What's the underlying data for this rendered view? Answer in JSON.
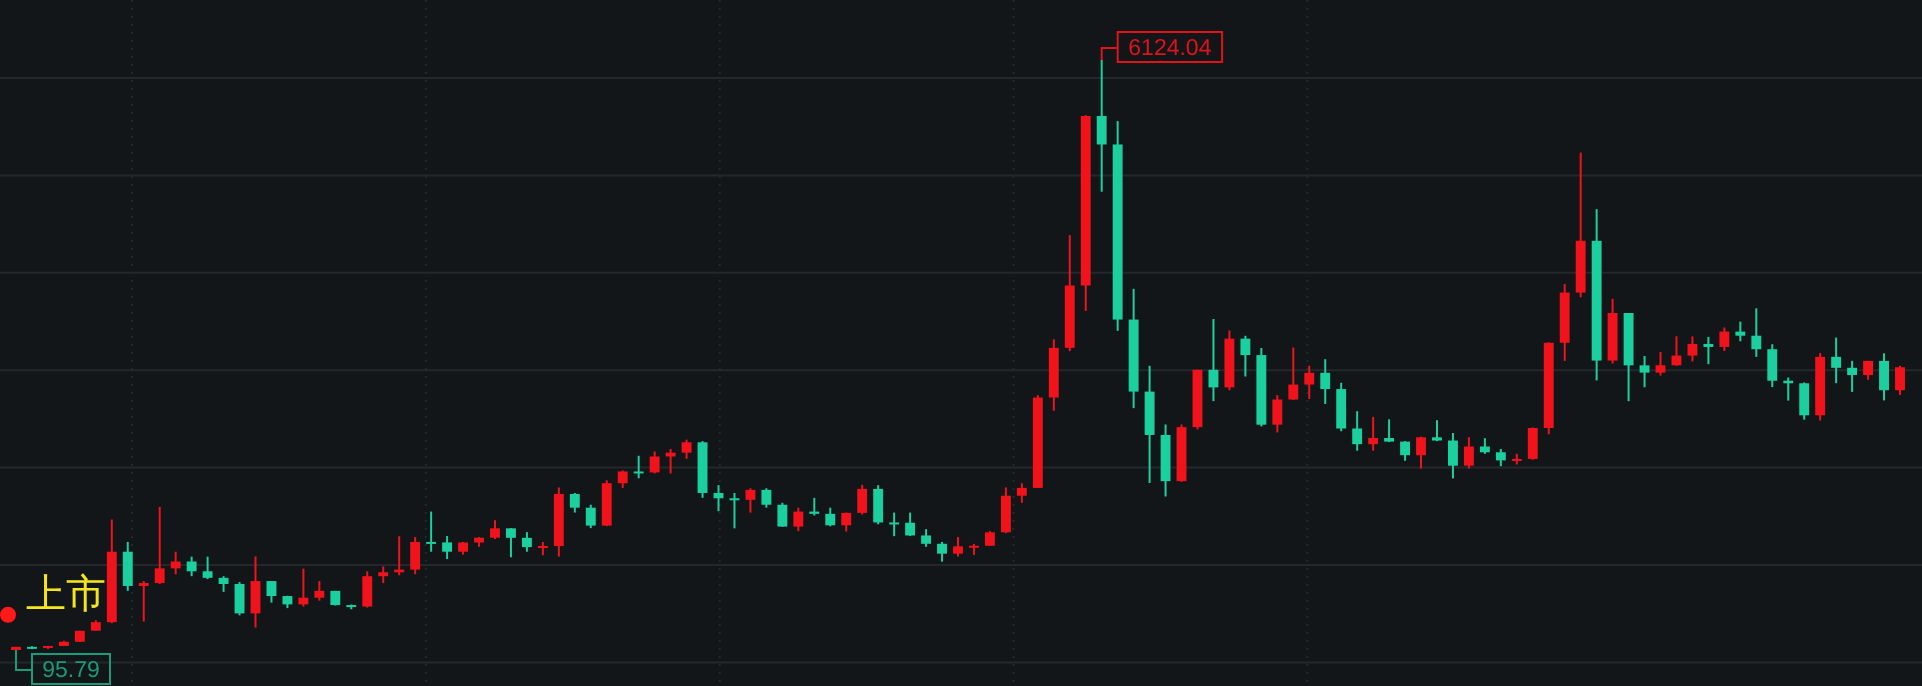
{
  "chart_data": {
    "type": "candlestick",
    "grid": true,
    "annotations": [
      "上市",
      "6124.04",
      "95.79"
    ],
    "categories": [
      null,
      null,
      null,
      null,
      null,
      null,
      null,
      null,
      null,
      null,
      null,
      null,
      null,
      null,
      null,
      null,
      null,
      null,
      null,
      null,
      null,
      null,
      null,
      null,
      null,
      null,
      null,
      null,
      null,
      null,
      null,
      null,
      null,
      null,
      null,
      null,
      null,
      null,
      null,
      null,
      null,
      null,
      null,
      null,
      null,
      null,
      null,
      null,
      null,
      null,
      null,
      null,
      null,
      null,
      null,
      null,
      null,
      null,
      null,
      null,
      null,
      null,
      null,
      null,
      null,
      null,
      null,
      null,
      null,
      null,
      null,
      null,
      null,
      null,
      null,
      null,
      null,
      null,
      null,
      null,
      null,
      null,
      null,
      null,
      null,
      null,
      null,
      null,
      null,
      null,
      null,
      null,
      null,
      null,
      null,
      null,
      null,
      null,
      null,
      null,
      null,
      null,
      null,
      null,
      null,
      null,
      null,
      null,
      null,
      null,
      null,
      null,
      null,
      null,
      null,
      null,
      null,
      null,
      null
    ],
    "ohlc": [
      [
        96,
        128,
        95.79,
        128
      ],
      [
        128,
        135,
        105,
        120
      ],
      [
        120,
        138,
        105,
        137
      ],
      [
        137,
        190,
        136,
        180
      ],
      [
        180,
        293,
        178,
        292
      ],
      [
        293,
        400,
        292,
        380
      ],
      [
        380,
        1429,
        370,
        1100
      ],
      [
        1100,
        1200,
        700,
        750
      ],
      [
        750,
        800,
        386,
        780
      ],
      [
        780,
        1558,
        770,
        930
      ],
      [
        930,
        1100,
        870,
        1000
      ],
      [
        1000,
        1050,
        850,
        900
      ],
      [
        900,
        1050,
        820,
        833
      ],
      [
        833,
        850,
        690,
        770
      ],
      [
        770,
        790,
        450,
        470
      ],
      [
        470,
        1052,
        325,
        800
      ],
      [
        800,
        800,
        580,
        647
      ],
      [
        647,
        650,
        524,
        562
      ],
      [
        562,
        927,
        540,
        630
      ],
      [
        630,
        800,
        600,
        700
      ],
      [
        700,
        700,
        550,
        555
      ],
      [
        555,
        560,
        512,
        540
      ],
      [
        540,
        900,
        530,
        850
      ],
      [
        850,
        950,
        780,
        890
      ],
      [
        890,
        1258,
        860,
        917
      ],
      [
        917,
        1250,
        870,
        1200
      ],
      [
        1200,
        1510,
        1100,
        1195
      ],
      [
        1195,
        1260,
        1025,
        1100
      ],
      [
        1100,
        1200,
        1070,
        1194
      ],
      [
        1194,
        1250,
        1150,
        1243
      ],
      [
        1243,
        1422,
        1230,
        1339
      ],
      [
        1339,
        1340,
        1043,
        1242
      ],
      [
        1242,
        1300,
        1100,
        1147
      ],
      [
        1147,
        1200,
        1064,
        1158
      ],
      [
        1158,
        1756,
        1050,
        1690
      ],
      [
        1690,
        1700,
        1500,
        1550
      ],
      [
        1550,
        1580,
        1341,
        1367
      ],
      [
        1367,
        1830,
        1361,
        1800
      ],
      [
        1800,
        1930,
        1750,
        1920
      ],
      [
        1920,
        2080,
        1850,
        1910
      ],
      [
        1910,
        2125,
        1900,
        2073
      ],
      [
        2073,
        2150,
        1900,
        2112
      ],
      [
        2112,
        2245,
        2050,
        2218
      ],
      [
        2218,
        2230,
        1650,
        1700
      ],
      [
        1700,
        1780,
        1514,
        1646
      ],
      [
        1646,
        1700,
        1339,
        1630
      ],
      [
        1630,
        1748,
        1500,
        1732
      ],
      [
        1732,
        1748,
        1550,
        1580
      ],
      [
        1580,
        1600,
        1355,
        1357
      ],
      [
        1357,
        1550,
        1311,
        1510
      ],
      [
        1510,
        1650,
        1470,
        1487
      ],
      [
        1487,
        1550,
        1360,
        1370
      ],
      [
        1370,
        1500,
        1307,
        1497
      ],
      [
        1497,
        1783,
        1480,
        1742
      ],
      [
        1742,
        1780,
        1380,
        1399
      ],
      [
        1399,
        1500,
        1259,
        1396
      ],
      [
        1396,
        1500,
        1260,
        1266
      ],
      [
        1266,
        1330,
        1150,
        1181
      ],
      [
        1181,
        1200,
        998,
        1080
      ],
      [
        1080,
        1250,
        1050,
        1155
      ],
      [
        1155,
        1180,
        1067,
        1161
      ],
      [
        1161,
        1310,
        1160,
        1298
      ],
      [
        1298,
        1757,
        1290,
        1672
      ],
      [
        1672,
        1800,
        1600,
        1752
      ],
      [
        1752,
        2700,
        1750,
        2675
      ],
      [
        2675,
        3270,
        2540,
        3183
      ],
      [
        3183,
        4335,
        3150,
        3820
      ],
      [
        3820,
        5560,
        3560,
        5552
      ],
      [
        5552,
        6124.04,
        4778,
        5261
      ],
      [
        5261,
        5500,
        3357,
        3472
      ],
      [
        3472,
        3786,
        2567,
        2736
      ],
      [
        2736,
        3000,
        1802,
        2293
      ],
      [
        2293,
        2400,
        1664,
        1821
      ],
      [
        1821,
        2400,
        1814,
        2373
      ],
      [
        2373,
        2960,
        2350,
        2959
      ],
      [
        2959,
        3478,
        2639,
        2779
      ],
      [
        2779,
        3361,
        2750,
        3277
      ],
      [
        3277,
        3306,
        2890,
        3109
      ],
      [
        3109,
        3181,
        2380,
        2398
      ],
      [
        2398,
        2700,
        2319,
        2655
      ],
      [
        2655,
        3186,
        2650,
        2808
      ],
      [
        2808,
        3000,
        2661,
        2928
      ],
      [
        2928,
        3067,
        2610,
        2762
      ],
      [
        2762,
        2826,
        2331,
        2359
      ],
      [
        2359,
        2536,
        2132,
        2199
      ],
      [
        2199,
        2478,
        2132,
        2262
      ],
      [
        2262,
        2453,
        2220,
        2225
      ],
      [
        2225,
        2230,
        2029,
        2086
      ],
      [
        2086,
        2276,
        1949,
        2269
      ],
      [
        2269,
        2444,
        2230,
        2236
      ],
      [
        2236,
        2313,
        1849,
        1979
      ],
      [
        1979,
        2270,
        1950,
        2175
      ],
      [
        2175,
        2260,
        2100,
        2116
      ],
      [
        2116,
        2150,
        1974,
        2033
      ],
      [
        2033,
        2100,
        1991,
        2048
      ],
      [
        2048,
        2370,
        2040,
        2364
      ],
      [
        2364,
        3239,
        2300,
        3235
      ],
      [
        3235,
        3835,
        3049,
        3748
      ],
      [
        3748,
        5178,
        3700,
        4277
      ],
      [
        4277,
        4600,
        2850,
        3053
      ],
      [
        3053,
        3684,
        3023,
        3539
      ],
      [
        3539,
        3539,
        2638,
        3004
      ],
      [
        3004,
        3100,
        2780,
        2930
      ],
      [
        2930,
        3140,
        2900,
        3005
      ],
      [
        3005,
        3301,
        3000,
        3104
      ],
      [
        3104,
        3300,
        3044,
        3223
      ],
      [
        3223,
        3295,
        3016,
        3192
      ],
      [
        3192,
        3391,
        3150,
        3349
      ],
      [
        3349,
        3451,
        3250,
        3307
      ],
      [
        3307,
        3587,
        3091,
        3169
      ],
      [
        3169,
        3220,
        2782,
        2847
      ],
      [
        2847,
        2880,
        2644,
        2821
      ],
      [
        2821,
        2830,
        2449,
        2494
      ],
      [
        2494,
        3130,
        2440,
        3091
      ],
      [
        3091,
        3288,
        2822,
        2979
      ],
      [
        2979,
        3050,
        2733,
        2905
      ],
      [
        2905,
        3050,
        2857,
        3050
      ],
      [
        3050,
        3127,
        2646,
        2750
      ],
      [
        2750,
        3000,
        2700,
        2985
      ]
    ],
    "colors": [
      "#f0131b",
      "#1bcf9f",
      "#f0131b",
      "#f0131b",
      "#f0131b",
      "#f0131b",
      "#f0131b",
      "#1bcf9f",
      "#f0131b",
      "#f0131b",
      "#f0131b",
      "#1bcf9f",
      "#1bcf9f",
      "#1bcf9f",
      "#1bcf9f",
      "#f0131b",
      "#1bcf9f",
      "#1bcf9f",
      "#f0131b",
      "#f0131b",
      "#1bcf9f",
      "#1bcf9f",
      "#f0131b",
      "#f0131b",
      "#f0131b",
      "#f0131b",
      "#1bcf9f",
      "#1bcf9f",
      "#f0131b",
      "#f0131b",
      "#f0131b",
      "#1bcf9f",
      "#1bcf9f",
      "#f0131b",
      "#f0131b",
      "#1bcf9f",
      "#1bcf9f",
      "#f0131b",
      "#f0131b",
      "#1bcf9f",
      "#f0131b",
      "#f0131b",
      "#f0131b",
      "#1bcf9f",
      "#1bcf9f",
      "#1bcf9f",
      "#f0131b",
      "#1bcf9f",
      "#1bcf9f",
      "#f0131b",
      "#1bcf9f",
      "#1bcf9f",
      "#f0131b",
      "#f0131b",
      "#1bcf9f",
      "#1bcf9f",
      "#1bcf9f",
      "#1bcf9f",
      "#1bcf9f",
      "#f0131b",
      "#f0131b",
      "#f0131b",
      "#f0131b",
      "#f0131b",
      "#f0131b",
      "#f0131b",
      "#f0131b",
      "#f0131b",
      "#1bcf9f",
      "#1bcf9f",
      "#1bcf9f",
      "#1bcf9f",
      "#1bcf9f",
      "#f0131b",
      "#f0131b",
      "#1bcf9f",
      "#f0131b",
      "#1bcf9f",
      "#1bcf9f",
      "#f0131b",
      "#f0131b",
      "#f0131b",
      "#1bcf9f",
      "#1bcf9f",
      "#1bcf9f",
      "#f0131b",
      "#1bcf9f",
      "#1bcf9f",
      "#f0131b",
      "#1bcf9f",
      "#1bcf9f",
      "#f0131b",
      "#1bcf9f",
      "#1bcf9f",
      "#f0131b",
      "#f0131b",
      "#f0131b",
      "#f0131b",
      "#f0131b",
      "#1bcf9f",
      "#f0131b",
      "#1bcf9f",
      "#1bcf9f",
      "#f0131b",
      "#f0131b",
      "#f0131b",
      "#1bcf9f",
      "#f0131b",
      "#1bcf9f",
      "#1bcf9f",
      "#1bcf9f",
      "#1bcf9f",
      "#1bcf9f",
      "#f0131b",
      "#1bcf9f",
      "#1bcf9f",
      "#f0131b",
      "#1bcf9f",
      "#f0131b"
    ]
  }
}
